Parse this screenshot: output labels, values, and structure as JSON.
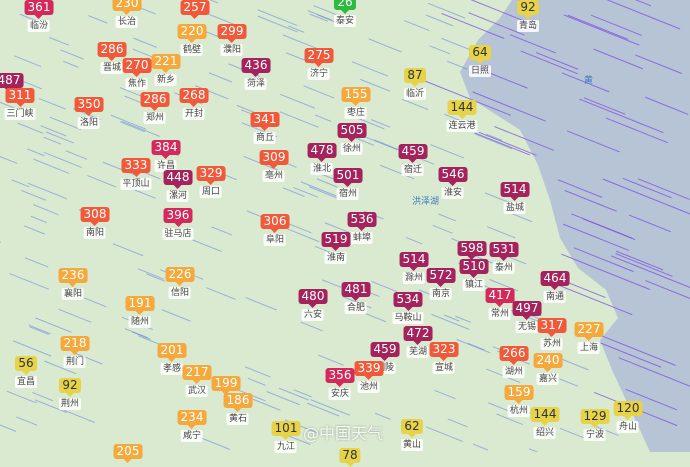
{
  "aqi_colors": {
    "good": "#2dbb3e",
    "moderate": "#e6d34a",
    "light": "#f5a83b",
    "medium": "#f05a3a",
    "heavy": "#d42a5b",
    "severe": "#a5235d"
  },
  "map": {
    "sea_color": "#b7c4d6",
    "land_color": "#d9ead0",
    "water_label": "洪泽湖",
    "sea_label": "黄"
  },
  "markers": [
    {
      "aqi": "361",
      "city": "临汾"
    },
    {
      "aqi": "230",
      "city": "长治"
    },
    {
      "aqi": "257",
      "city": ""
    },
    {
      "aqi": "220",
      "city": "鹤壁"
    },
    {
      "aqi": "299",
      "city": "濮阳"
    },
    {
      "aqi": "286",
      "city": "晋城"
    },
    {
      "aqi": "270",
      "city": "焦作"
    },
    {
      "aqi": "221",
      "city": "新乡"
    },
    {
      "aqi": "436",
      "city": "菏泽"
    },
    {
      "aqi": "275",
      "city": "济宁"
    },
    {
      "aqi": "487",
      "city": ""
    },
    {
      "aqi": "311",
      "city": "三门峡"
    },
    {
      "aqi": "350",
      "city": "洛阳"
    },
    {
      "aqi": "286",
      "city": "郑州"
    },
    {
      "aqi": "268",
      "city": "开封"
    },
    {
      "aqi": "341",
      "city": "商丘"
    },
    {
      "aqi": "155",
      "city": "枣庄"
    },
    {
      "aqi": "87",
      "city": "临沂"
    },
    {
      "aqi": "64",
      "city": "日照"
    },
    {
      "aqi": "92",
      "city": "青岛"
    },
    {
      "aqi": "144",
      "city": "连云港"
    },
    {
      "aqi": "505",
      "city": "徐州"
    },
    {
      "aqi": "478",
      "city": "淮北"
    },
    {
      "aqi": "501",
      "city": "宿州"
    },
    {
      "aqi": "309",
      "city": "亳州"
    },
    {
      "aqi": "459",
      "city": "宿迁"
    },
    {
      "aqi": "546",
      "city": "淮安"
    },
    {
      "aqi": "514",
      "city": "盐城"
    },
    {
      "aqi": "384",
      "city": "许昌"
    },
    {
      "aqi": "333",
      "city": "平顶山"
    },
    {
      "aqi": "448",
      "city": "漯河"
    },
    {
      "aqi": "329",
      "city": "周口"
    },
    {
      "aqi": "308",
      "city": "南阳"
    },
    {
      "aqi": "396",
      "city": "驻马店"
    },
    {
      "aqi": "306",
      "city": "阜阳"
    },
    {
      "aqi": "536",
      "city": "蚌埠"
    },
    {
      "aqi": "519",
      "city": "淮南"
    },
    {
      "aqi": "514",
      "city": "滁州"
    },
    {
      "aqi": "572",
      "city": "南京"
    },
    {
      "aqi": "598",
      "city": ""
    },
    {
      "aqi": "510",
      "city": "镇江"
    },
    {
      "aqi": "531",
      "city": "泰州"
    },
    {
      "aqi": "464",
      "city": "南通"
    },
    {
      "aqi": "481",
      "city": "合肥"
    },
    {
      "aqi": "480",
      "city": "六安"
    },
    {
      "aqi": "534",
      "city": "马鞍山"
    },
    {
      "aqi": "417",
      "city": "常州"
    },
    {
      "aqi": "497",
      "city": "无锡"
    },
    {
      "aqi": "472",
      "city": "芜湖"
    },
    {
      "aqi": "317",
      "city": "苏州"
    },
    {
      "aqi": "227",
      "city": "上海"
    },
    {
      "aqi": "459",
      "city": "铜陵"
    },
    {
      "aqi": "323",
      "city": "宣城"
    },
    {
      "aqi": "266",
      "city": "湖州"
    },
    {
      "aqi": "240",
      "city": "嘉兴"
    },
    {
      "aqi": "339",
      "city": "池州"
    },
    {
      "aqi": "356",
      "city": "安庆"
    },
    {
      "aqi": "159",
      "city": "杭州"
    },
    {
      "aqi": "144",
      "city": "绍兴"
    },
    {
      "aqi": "129",
      "city": "宁波"
    },
    {
      "aqi": "120",
      "city": "舟山"
    },
    {
      "aqi": "62",
      "city": "黄山"
    },
    {
      "aqi": "101",
      "city": "九江"
    },
    {
      "aqi": "236",
      "city": "襄阳"
    },
    {
      "aqi": "226",
      "city": "信阳"
    },
    {
      "aqi": "191",
      "city": "随州"
    },
    {
      "aqi": "218",
      "city": "荆门"
    },
    {
      "aqi": "56",
      "city": "宜昌"
    },
    {
      "aqi": "92",
      "city": "荆州"
    },
    {
      "aqi": "201",
      "city": "孝感"
    },
    {
      "aqi": "217",
      "city": "武汉"
    },
    {
      "aqi": "199",
      "city": ""
    },
    {
      "aqi": "186",
      "city": "黄石"
    },
    {
      "aqi": "234",
      "city": "咸宁"
    },
    {
      "aqi": "205",
      "city": ""
    },
    {
      "aqi": "26",
      "city": "泰安"
    },
    {
      "aqi": "78",
      "city": ""
    }
  ],
  "watermark": "@中国天气"
}
